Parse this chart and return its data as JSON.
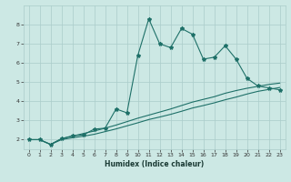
{
  "xlabel": "Humidex (Indice chaleur)",
  "bg_color": "#cce8e4",
  "grid_color": "#aaccca",
  "line_color": "#1e7068",
  "xlim": [
    -0.5,
    23.5
  ],
  "ylim": [
    1.5,
    9.0
  ],
  "x_ticks": [
    0,
    1,
    2,
    3,
    4,
    5,
    6,
    7,
    8,
    9,
    10,
    11,
    12,
    13,
    14,
    15,
    16,
    17,
    18,
    19,
    20,
    21,
    22,
    23
  ],
  "y_ticks": [
    2,
    3,
    4,
    5,
    6,
    7,
    8
  ],
  "line1_x": [
    0,
    1,
    2,
    3,
    4,
    5,
    6,
    7,
    8,
    9,
    10,
    11,
    12,
    13,
    14,
    15,
    16,
    17,
    18,
    19,
    20,
    21,
    22,
    23
  ],
  "line1_y": [
    2.0,
    2.0,
    1.75,
    2.05,
    2.2,
    2.25,
    2.55,
    2.6,
    3.6,
    3.4,
    6.4,
    8.3,
    7.0,
    6.8,
    7.8,
    7.5,
    6.2,
    6.3,
    6.9,
    6.2,
    5.2,
    4.8,
    4.7,
    4.6
  ],
  "line2_x": [
    0,
    1,
    2,
    3,
    4,
    5,
    6,
    7,
    8,
    9,
    10,
    11,
    12,
    13,
    14,
    15,
    16,
    17,
    18,
    19,
    20,
    21,
    22,
    23
  ],
  "line2_y": [
    2.0,
    2.0,
    1.75,
    2.0,
    2.1,
    2.18,
    2.28,
    2.42,
    2.56,
    2.72,
    2.88,
    3.05,
    3.18,
    3.32,
    3.48,
    3.65,
    3.78,
    3.92,
    4.08,
    4.22,
    4.38,
    4.52,
    4.62,
    4.72
  ],
  "line3_x": [
    0,
    1,
    2,
    3,
    4,
    5,
    6,
    7,
    8,
    9,
    10,
    11,
    12,
    13,
    14,
    15,
    16,
    17,
    18,
    19,
    20,
    21,
    22,
    23
  ],
  "line3_y": [
    2.0,
    2.0,
    1.75,
    2.05,
    2.18,
    2.32,
    2.45,
    2.6,
    2.76,
    2.94,
    3.12,
    3.28,
    3.44,
    3.6,
    3.78,
    3.96,
    4.1,
    4.24,
    4.42,
    4.56,
    4.68,
    4.78,
    4.88,
    4.95
  ],
  "lw": 0.8,
  "marker_size": 3.0,
  "tick_fontsize": 4.5,
  "xlabel_fontsize": 5.5
}
